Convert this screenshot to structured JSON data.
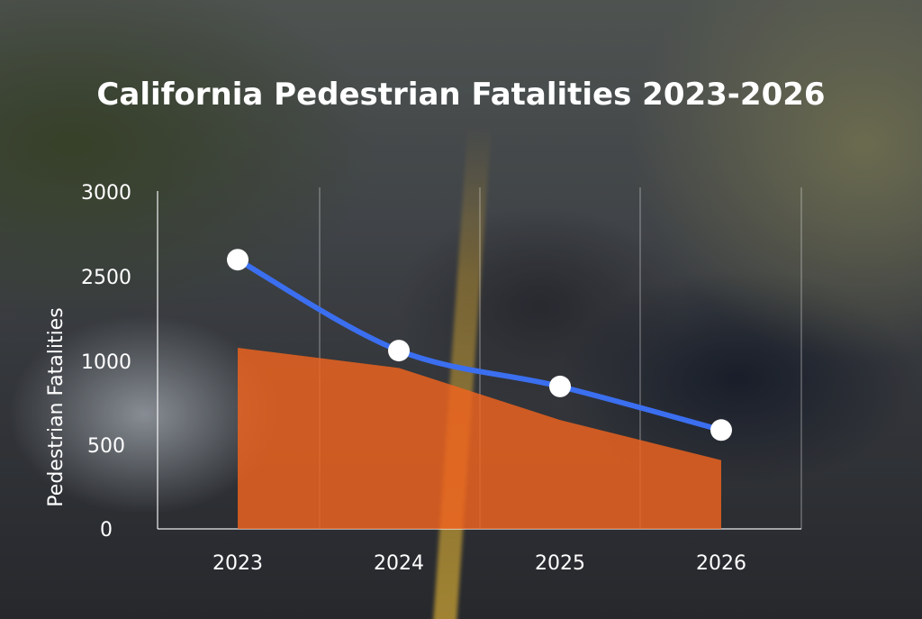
{
  "chart_data": {
    "type": "line",
    "title": "California Pedestrian Fatalities 2023-2026",
    "xlabel": "",
    "ylabel": "Pedestrian Fatalities",
    "categories": [
      "2023",
      "2024",
      "2025",
      "2026"
    ],
    "y_ticks": [
      "0",
      "500",
      "1000",
      "2500",
      "3000"
    ],
    "series": [
      {
        "kind": "line",
        "values": [
          2600,
          1190,
          850,
          590
        ],
        "color": "#3b6ff0"
      },
      {
        "kind": "area",
        "values": [
          1240,
          960,
          650,
          410
        ],
        "color": "#f0641e"
      }
    ],
    "grid": "vertical",
    "legend": "none"
  }
}
